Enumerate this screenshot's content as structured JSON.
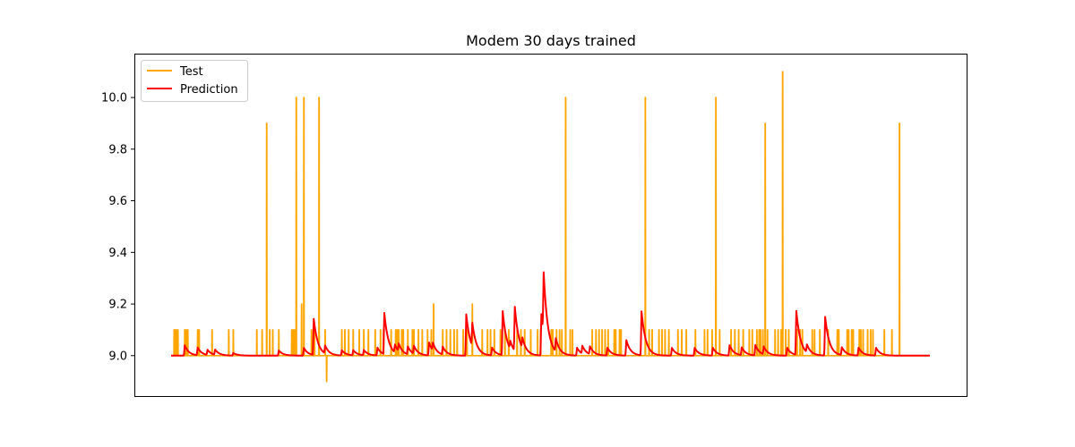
{
  "chart_data": {
    "type": "line",
    "title": "Modem 30 days trained",
    "xlabel": "",
    "ylabel": "",
    "x_ticks_visible": false,
    "xlim": [
      0,
      1000
    ],
    "ylim": [
      8.84,
      10.17
    ],
    "yticks": [
      9.0,
      9.2,
      9.4,
      9.6,
      9.8,
      10.0
    ],
    "ytick_labels": [
      "9.0",
      "9.2",
      "9.4",
      "9.6",
      "9.8",
      "10.0"
    ],
    "grid": false,
    "legend_position": "top-left",
    "series": [
      {
        "name": "Test",
        "color": "#ffa500",
        "baseline": 9.0,
        "spikes": [
          [
            4,
            9.1
          ],
          [
            5,
            9.1
          ],
          [
            7,
            9.1
          ],
          [
            9,
            9.1
          ],
          [
            18,
            9.1
          ],
          [
            20,
            9.1
          ],
          [
            22,
            9.1
          ],
          [
            35,
            9.1
          ],
          [
            37,
            9.1
          ],
          [
            54,
            9.1
          ],
          [
            76,
            9.1
          ],
          [
            82,
            9.1
          ],
          [
            113,
            9.1
          ],
          [
            120,
            9.1
          ],
          [
            126,
            9.9
          ],
          [
            130,
            9.1
          ],
          [
            134,
            9.1
          ],
          [
            142,
            9.1
          ],
          [
            159,
            9.1
          ],
          [
            161,
            9.1
          ],
          [
            163,
            9.1
          ],
          [
            165,
            10.0
          ],
          [
            172,
            9.2
          ],
          [
            175,
            10.0
          ],
          [
            185,
            9.1
          ],
          [
            189,
            9.1
          ],
          [
            195,
            10.0
          ],
          [
            203,
            9.1
          ],
          [
            205,
            8.9
          ],
          [
            225,
            9.1
          ],
          [
            229,
            9.1
          ],
          [
            234,
            9.1
          ],
          [
            240,
            9.1
          ],
          [
            248,
            9.1
          ],
          [
            254,
            9.1
          ],
          [
            260,
            9.1
          ],
          [
            269,
            9.1
          ],
          [
            276,
            9.1
          ],
          [
            280,
            9.1
          ],
          [
            290,
            9.1
          ],
          [
            296,
            9.1
          ],
          [
            298,
            9.1
          ],
          [
            300,
            9.1
          ],
          [
            304,
            9.1
          ],
          [
            306,
            9.1
          ],
          [
            312,
            9.1
          ],
          [
            318,
            9.1
          ],
          [
            320,
            9.1
          ],
          [
            326,
            9.1
          ],
          [
            331,
            9.1
          ],
          [
            338,
            9.1
          ],
          [
            343,
            9.1
          ],
          [
            346,
            9.2
          ],
          [
            358,
            9.1
          ],
          [
            363,
            9.1
          ],
          [
            368,
            9.1
          ],
          [
            373,
            9.1
          ],
          [
            377,
            9.1
          ],
          [
            385,
            9.1
          ],
          [
            390,
            9.1
          ],
          [
            397,
            9.2
          ],
          [
            410,
            9.1
          ],
          [
            417,
            9.1
          ],
          [
            421,
            9.1
          ],
          [
            426,
            9.1
          ],
          [
            434,
            9.1
          ],
          [
            440,
            9.1
          ],
          [
            445,
            9.1
          ],
          [
            456,
            9.1
          ],
          [
            461,
            9.1
          ],
          [
            466,
            9.1
          ],
          [
            474,
            9.1
          ],
          [
            483,
            9.1
          ],
          [
            487,
            9.1
          ],
          [
            501,
            9.1
          ],
          [
            503,
            9.1
          ],
          [
            508,
            9.1
          ],
          [
            512,
            9.1
          ],
          [
            515,
            9.1
          ],
          [
            520,
            10.0
          ],
          [
            526,
            9.1
          ],
          [
            529,
            9.1
          ],
          [
            555,
            9.1
          ],
          [
            560,
            9.1
          ],
          [
            564,
            9.1
          ],
          [
            568,
            9.1
          ],
          [
            572,
            9.1
          ],
          [
            576,
            9.1
          ],
          [
            584,
            9.1
          ],
          [
            586,
            9.1
          ],
          [
            591,
            9.1
          ],
          [
            593,
            9.1
          ],
          [
            625,
            10.0
          ],
          [
            630,
            9.1
          ],
          [
            634,
            9.1
          ],
          [
            643,
            9.1
          ],
          [
            647,
            9.1
          ],
          [
            651,
            9.1
          ],
          [
            656,
            9.1
          ],
          [
            668,
            9.1
          ],
          [
            673,
            9.1
          ],
          [
            679,
            9.1
          ],
          [
            691,
            9.1
          ],
          [
            703,
            9.1
          ],
          [
            707,
            9.1
          ],
          [
            713,
            9.1
          ],
          [
            718,
            10.0
          ],
          [
            723,
            9.1
          ],
          [
            738,
            9.1
          ],
          [
            743,
            9.1
          ],
          [
            748,
            9.1
          ],
          [
            754,
            9.1
          ],
          [
            762,
            9.1
          ],
          [
            766,
            9.1
          ],
          [
            772,
            9.1
          ],
          [
            775,
            9.1
          ],
          [
            777,
            9.1
          ],
          [
            780,
            9.1
          ],
          [
            783,
            9.9
          ],
          [
            786,
            9.1
          ],
          [
            796,
            9.1
          ],
          [
            800,
            9.1
          ],
          [
            804,
            9.1
          ],
          [
            806,
            10.1
          ],
          [
            810,
            9.1
          ],
          [
            814,
            9.1
          ],
          [
            825,
            9.1
          ],
          [
            829,
            9.1
          ],
          [
            832,
            9.1
          ],
          [
            845,
            9.1
          ],
          [
            848,
            9.1
          ],
          [
            855,
            9.1
          ],
          [
            866,
            9.1
          ],
          [
            878,
            9.1
          ],
          [
            880,
            9.1
          ],
          [
            891,
            9.1
          ],
          [
            893,
            9.1
          ],
          [
            897,
            9.1
          ],
          [
            899,
            9.1
          ],
          [
            907,
            9.1
          ],
          [
            909,
            9.1
          ],
          [
            912,
            9.1
          ],
          [
            918,
            9.1
          ],
          [
            922,
            9.1
          ],
          [
            925,
            9.1
          ],
          [
            940,
            9.1
          ],
          [
            950,
            9.1
          ],
          [
            960,
            9.9
          ]
        ]
      },
      {
        "name": "Prediction",
        "color": "#ff0000",
        "baseline": 9.0,
        "peaks": [
          [
            18,
            9.04
          ],
          [
            35,
            9.03
          ],
          [
            48,
            9.02
          ],
          [
            58,
            9.02
          ],
          [
            82,
            9.01
          ],
          [
            142,
            9.02
          ],
          [
            175,
            9.03
          ],
          [
            188,
            9.14
          ],
          [
            203,
            9.03
          ],
          [
            225,
            9.02
          ],
          [
            240,
            9.02
          ],
          [
            254,
            9.02
          ],
          [
            272,
            9.03
          ],
          [
            281,
            9.16
          ],
          [
            295,
            9.03
          ],
          [
            300,
            9.03
          ],
          [
            312,
            9.03
          ],
          [
            320,
            9.03
          ],
          [
            340,
            9.05
          ],
          [
            345,
            9.03
          ],
          [
            358,
            9.03
          ],
          [
            389,
            9.16
          ],
          [
            397,
            9.09
          ],
          [
            423,
            9.03
          ],
          [
            437,
            9.17
          ],
          [
            447,
            9.03
          ],
          [
            453,
            9.17
          ],
          [
            463,
            9.04
          ],
          [
            488,
            9.16
          ],
          [
            491,
            9.23
          ],
          [
            507,
            9.05
          ],
          [
            535,
            9.03
          ],
          [
            542,
            9.03
          ],
          [
            552,
            9.03
          ],
          [
            575,
            9.03
          ],
          [
            600,
            9.06
          ],
          [
            620,
            9.17
          ],
          [
            660,
            9.03
          ],
          [
            690,
            9.03
          ],
          [
            714,
            9.03
          ],
          [
            736,
            9.04
          ],
          [
            752,
            9.03
          ],
          [
            770,
            9.04
          ],
          [
            781,
            9.03
          ],
          [
            812,
            9.03
          ],
          [
            824,
            9.17
          ],
          [
            838,
            9.03
          ],
          [
            862,
            9.15
          ],
          [
            884,
            9.03
          ],
          [
            906,
            9.03
          ],
          [
            929,
            9.03
          ]
        ]
      }
    ]
  }
}
